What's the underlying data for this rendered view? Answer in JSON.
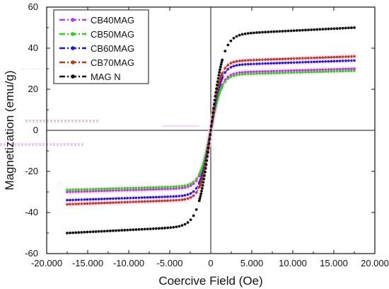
{
  "chart_data": {
    "type": "scatter",
    "title": "",
    "xlabel": "Coercive Field (Oe)",
    "ylabel": "Magnetization (emu/g)",
    "xlim": [
      -20000,
      20000
    ],
    "ylim": [
      -60,
      60
    ],
    "x_ticks": [
      -20000,
      -15000,
      -10000,
      -5000,
      0,
      5000,
      10000,
      15000,
      20000
    ],
    "x_tick_labels": [
      "-20.000",
      "-15.000",
      "-10.000",
      "-5.000",
      "0",
      "5.000",
      "10.000",
      "15.000",
      "20.000"
    ],
    "y_ticks": [
      -60,
      -40,
      -20,
      0,
      20,
      40,
      60
    ],
    "y_tick_labels": [
      "-60",
      "-40",
      "-20",
      "0",
      "20",
      "40",
      "60"
    ],
    "grid": false,
    "legend_position": "top-left",
    "x_range_measured": [
      -17500,
      17500
    ],
    "series": [
      {
        "name": "CB40MAG",
        "color": "#b43cdc",
        "band_color": "#ffc8f0",
        "marker": "circle",
        "saturation_emu_g": 30,
        "field_Oe": [
          -17500,
          -10000,
          -5000,
          -2500,
          -1000,
          0,
          1000,
          2500,
          5000,
          10000,
          17500
        ],
        "magnetization_emu_g": [
          -30,
          -28.5,
          -26,
          -22,
          -14,
          0,
          14,
          22,
          26,
          28.5,
          30
        ]
      },
      {
        "name": "CB50MAG",
        "color": "#33cc22",
        "band_color": "#ffd2ee",
        "marker": "circle",
        "saturation_emu_g": 29,
        "field_Oe": [
          -17500,
          -10000,
          -5000,
          -2500,
          -1000,
          0,
          1000,
          2500,
          5000,
          10000,
          17500
        ],
        "magnetization_emu_g": [
          -29,
          -27.5,
          -25,
          -21,
          -13,
          0,
          13,
          21,
          25,
          27.5,
          29
        ]
      },
      {
        "name": "CB60MAG",
        "color": "#1a1ad6",
        "band_color": "#ffd2ee",
        "marker": "circle",
        "saturation_emu_g": 34,
        "field_Oe": [
          -17500,
          -10000,
          -5000,
          -2500,
          -1000,
          0,
          1000,
          2500,
          5000,
          10000,
          17500
        ],
        "magnetization_emu_g": [
          -34,
          -32.5,
          -29.5,
          -25,
          -16,
          0,
          16,
          25,
          29.5,
          32.5,
          34
        ]
      },
      {
        "name": "CB70MAG",
        "color": "#b43a1e",
        "band_color": "#ffc8ee",
        "marker": "circle",
        "saturation_emu_g": 36,
        "field_Oe": [
          -17500,
          -10000,
          -5000,
          -2500,
          -1000,
          0,
          1000,
          2500,
          5000,
          10000,
          17500
        ],
        "magnetization_emu_g": [
          -36,
          -34.5,
          -32,
          -27,
          -17,
          0,
          17,
          27,
          32,
          34.5,
          36
        ]
      },
      {
        "name": "MAG N",
        "color": "#111111",
        "marker": "circle",
        "saturation_emu_g": 50,
        "field_Oe": [
          -17500,
          -10000,
          -5000,
          -2500,
          -1000,
          0,
          1000,
          2500,
          5000,
          10000,
          17500
        ],
        "magnetization_emu_g": [
          -50,
          -48,
          -45,
          -38,
          -25,
          0,
          25,
          38,
          45,
          48,
          50
        ]
      }
    ]
  }
}
